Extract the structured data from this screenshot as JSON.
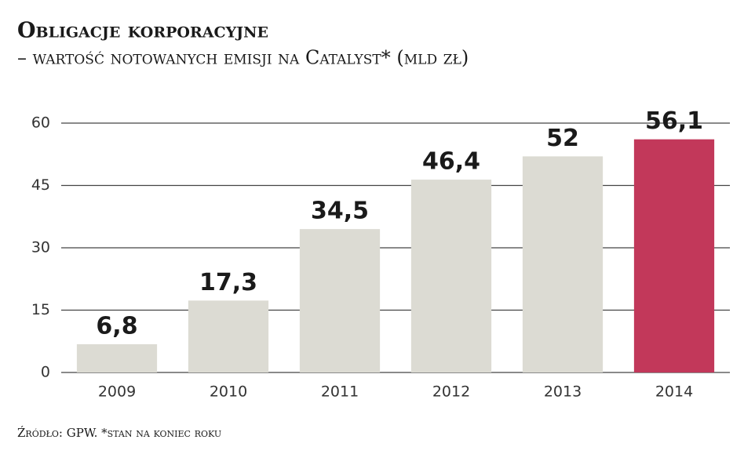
{
  "chart_data": {
    "type": "bar",
    "title": "Obligacje korporacyjne",
    "subtitle": "– wartość notowanych emisji na Catalyst* (mld zł)",
    "source": "Źródło: GPW. *stan na koniec roku",
    "categories": [
      "2009",
      "2010",
      "2011",
      "2012",
      "2013",
      "2014"
    ],
    "values": [
      6.8,
      17.3,
      34.5,
      46.4,
      52,
      56.1
    ],
    "value_labels": [
      "6,8",
      "17,3",
      "34,5",
      "46,4",
      "52",
      "56,1"
    ],
    "colors": [
      "#dcdbd3",
      "#dcdbd3",
      "#dcdbd3",
      "#dcdbd3",
      "#dcdbd3",
      "#c2385a"
    ],
    "ylim": [
      0,
      60
    ],
    "yticks": [
      0,
      15,
      30,
      45,
      60
    ],
    "grid": true
  }
}
